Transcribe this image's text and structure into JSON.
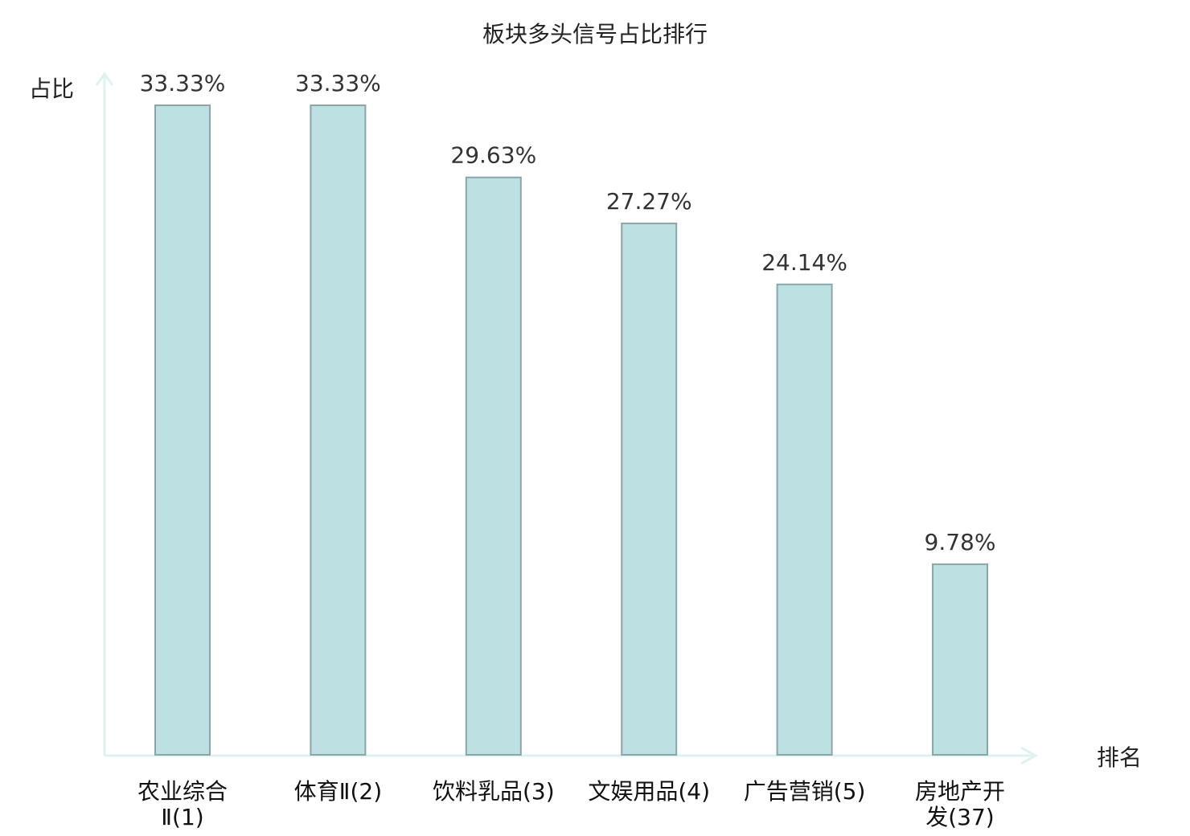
{
  "chart_data": {
    "type": "bar",
    "title": "板块多头信号占比排行",
    "ylabel": "占比",
    "xlabel": "排名",
    "ylim": [
      0,
      33.33
    ],
    "grid": false,
    "categories": [
      [
        "农业综合",
        "Ⅱ(1)"
      ],
      [
        "体育Ⅱ(2)"
      ],
      [
        "饮料乳品(3)"
      ],
      [
        "文娱用品(4)"
      ],
      [
        "广告营销(5)"
      ],
      [
        "房地产开",
        "发(37)"
      ]
    ],
    "values": [
      33.33,
      33.33,
      29.63,
      27.27,
      24.14,
      9.78
    ],
    "value_labels": [
      "33.33%",
      "33.33%",
      "29.63%",
      "27.27%",
      "24.14%",
      "9.78%"
    ],
    "highlight_index": 5,
    "colors": {
      "bar_fill": "#bde0e3",
      "bar_stroke": "#8aa6a8",
      "axis": "#def2ef",
      "highlight_label": "#e00000",
      "label": "#111111"
    }
  }
}
